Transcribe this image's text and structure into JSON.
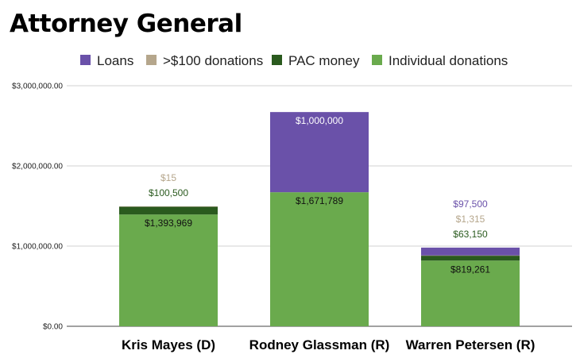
{
  "title": "Attorney General",
  "colors": {
    "Loans": "#6a51a9",
    ">$100 donations": "#b5a68c",
    "PAC money": "#2a5a1e",
    "Individual donations": "#6aaa4d"
  },
  "chart_data": {
    "type": "bar",
    "stacked": true,
    "title": "Attorney General",
    "categories": [
      "Kris Mayes (D)",
      "Rodney Glassman (R)",
      "Warren Petersen (R)"
    ],
    "series": [
      {
        "name": "Individual donations",
        "values": [
          1393969,
          1671789,
          819261
        ],
        "labels": [
          "$1,393,969",
          "$1,671,789",
          "$819,261"
        ]
      },
      {
        "name": "PAC money",
        "values": [
          100500,
          0,
          63150
        ],
        "labels": [
          "$100,500",
          "",
          "$63,150"
        ]
      },
      {
        "name": ">$100 donations",
        "values": [
          15,
          0,
          1315
        ],
        "labels": [
          "$15",
          "",
          "$1,315"
        ]
      },
      {
        "name": "Loans",
        "values": [
          0,
          1000000,
          97500
        ],
        "labels": [
          "",
          "$1,000,000",
          "$97,500"
        ]
      }
    ],
    "legend_order": [
      "Loans",
      ">$100 donations",
      "PAC money",
      "Individual donations"
    ],
    "legend_position": "top",
    "ylim": [
      0,
      3000000
    ],
    "yticks": [
      0,
      1000000,
      2000000,
      3000000
    ],
    "ytick_labels": [
      "$0.00",
      "$1,000,000.00",
      "$2,000,000.00",
      "$3,000,000.00"
    ],
    "grid": true
  }
}
